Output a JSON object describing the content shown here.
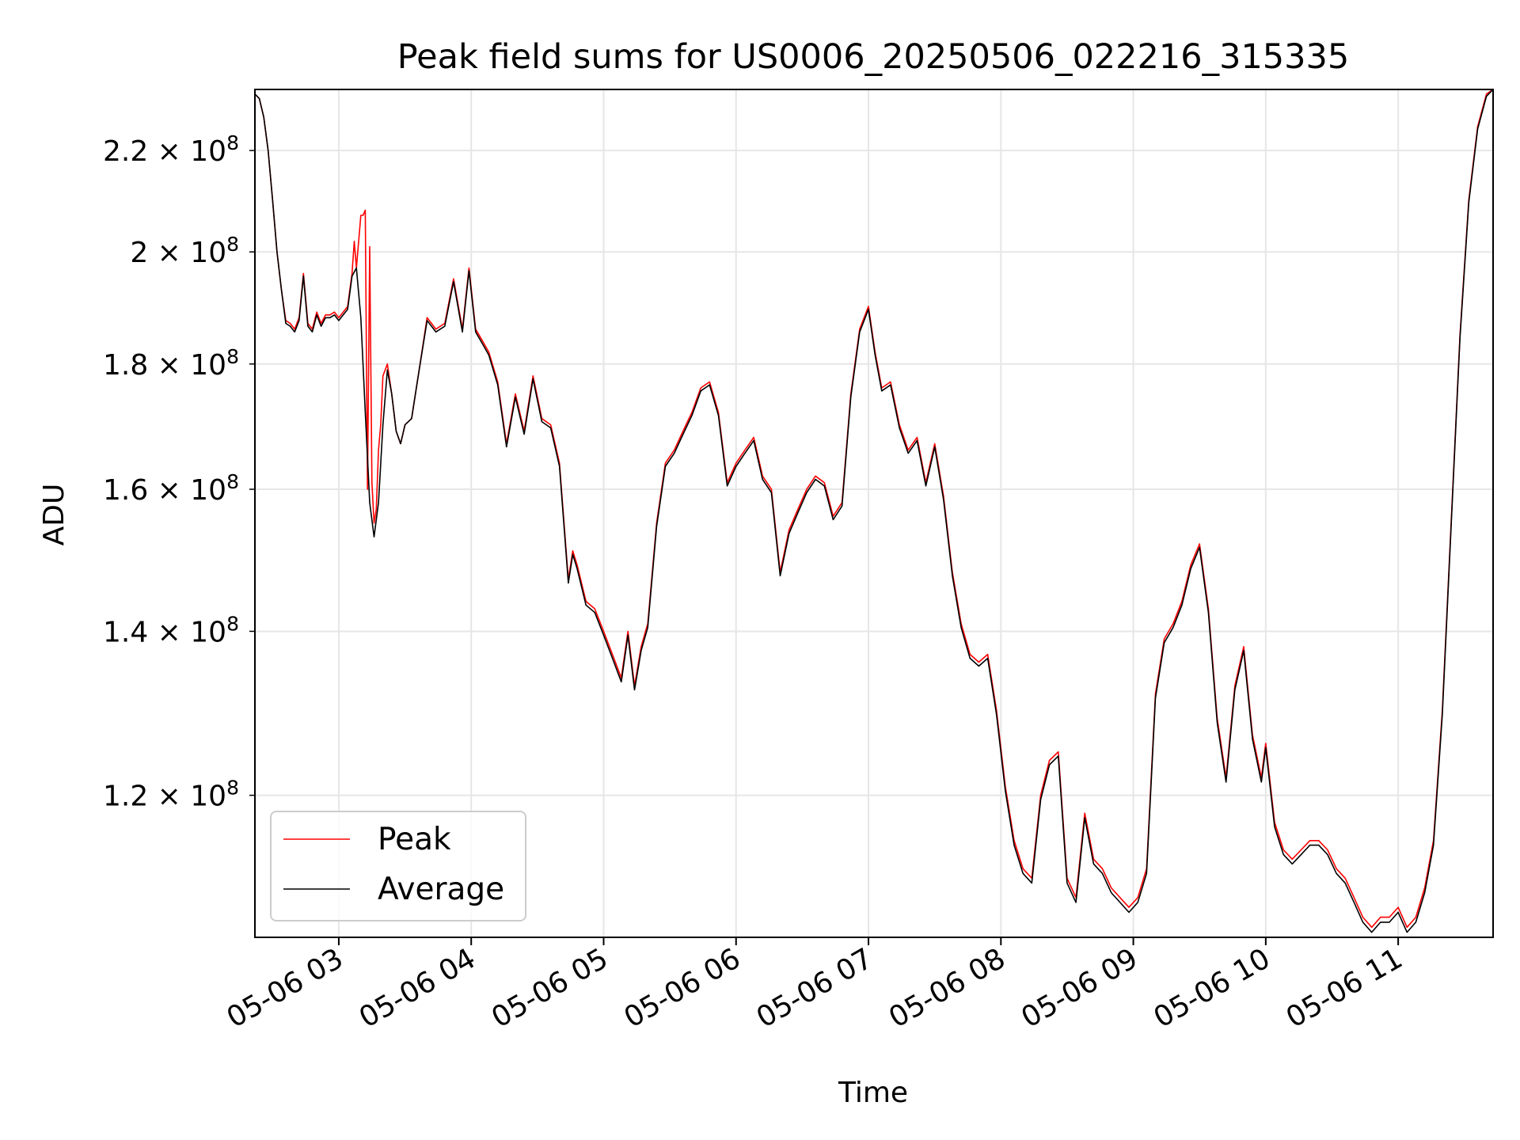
{
  "chart_data": {
    "type": "line",
    "title": "Peak field sums for US0006_20250506_022216_315335",
    "xlabel": "Time",
    "ylabel": "ADU",
    "yscale": "log",
    "grid": true,
    "legend_position": "lower-left",
    "xlim": [
      "05-06 02:22",
      "05-06 11:43"
    ],
    "ylim": [
      105000000.0,
      233000000.0
    ],
    "x_ticks": [
      {
        "label": "05-06 03",
        "value": "05-06 03:00"
      },
      {
        "label": "05-06 04",
        "value": "05-06 04:00"
      },
      {
        "label": "05-06 05",
        "value": "05-06 05:00"
      },
      {
        "label": "05-06 06",
        "value": "05-06 06:00"
      },
      {
        "label": "05-06 07",
        "value": "05-06 07:00"
      },
      {
        "label": "05-06 08",
        "value": "05-06 08:00"
      },
      {
        "label": "05-06 09",
        "value": "05-06 09:00"
      },
      {
        "label": "05-06 10",
        "value": "05-06 10:00"
      },
      {
        "label": "05-06 11",
        "value": "05-06 11:00"
      }
    ],
    "y_ticks": [
      {
        "mantissa": "1.2",
        "exponent": "8",
        "value": 120000000.0
      },
      {
        "mantissa": "1.4",
        "exponent": "8",
        "value": 140000000.0
      },
      {
        "mantissa": "1.6",
        "exponent": "8",
        "value": 160000000.0
      },
      {
        "mantissa": "1.8",
        "exponent": "8",
        "value": 180000000.0
      },
      {
        "mantissa": "2",
        "exponent": "8",
        "value": 200000000.0
      },
      {
        "mantissa": "2.2",
        "exponent": "8",
        "value": 220000000.0
      }
    ],
    "series": [
      {
        "name": "Peak",
        "color": "#ff0000",
        "x": [
          "05-06 02:22",
          "05-06 02:24",
          "05-06 02:26",
          "05-06 02:28",
          "05-06 02:30",
          "05-06 02:32",
          "05-06 02:34",
          "05-06 02:36",
          "05-06 02:38",
          "05-06 02:40",
          "05-06 02:42",
          "05-06 02:44",
          "05-06 02:46",
          "05-06 02:48",
          "05-06 02:50",
          "05-06 02:52",
          "05-06 02:54",
          "05-06 02:56",
          "05-06 02:58",
          "05-06 03:00",
          "05-06 03:02",
          "05-06 03:04",
          "05-06 03:06",
          "05-06 03:07",
          "05-06 03:08",
          "05-06 03:10",
          "05-06 03:11",
          "05-06 03:12",
          "05-06 03:13",
          "05-06 03:14",
          "05-06 03:15",
          "05-06 03:16",
          "05-06 03:17",
          "05-06 03:18",
          "05-06 03:19",
          "05-06 03:20",
          "05-06 03:22",
          "05-06 03:24",
          "05-06 03:26",
          "05-06 03:28",
          "05-06 03:30",
          "05-06 03:33",
          "05-06 03:36",
          "05-06 03:40",
          "05-06 03:44",
          "05-06 03:48",
          "05-06 03:52",
          "05-06 03:56",
          "05-06 03:59",
          "05-06 04:02",
          "05-06 04:05",
          "05-06 04:08",
          "05-06 04:12",
          "05-06 04:16",
          "05-06 04:20",
          "05-06 04:24",
          "05-06 04:28",
          "05-06 04:32",
          "05-06 04:36",
          "05-06 04:40",
          "05-06 04:44",
          "05-06 04:46",
          "05-06 04:48",
          "05-06 04:52",
          "05-06 04:56",
          "05-06 05:00",
          "05-06 05:04",
          "05-06 05:08",
          "05-06 05:11",
          "05-06 05:14",
          "05-06 05:17",
          "05-06 05:20",
          "05-06 05:24",
          "05-06 05:28",
          "05-06 05:32",
          "05-06 05:36",
          "05-06 05:40",
          "05-06 05:44",
          "05-06 05:48",
          "05-06 05:52",
          "05-06 05:56",
          "05-06 06:00",
          "05-06 06:04",
          "05-06 06:08",
          "05-06 06:12",
          "05-06 06:16",
          "05-06 06:20",
          "05-06 06:24",
          "05-06 06:28",
          "05-06 06:32",
          "05-06 06:36",
          "05-06 06:40",
          "05-06 06:44",
          "05-06 06:48",
          "05-06 06:52",
          "05-06 06:56",
          "05-06 07:00",
          "05-06 07:03",
          "05-06 07:06",
          "05-06 07:10",
          "05-06 07:14",
          "05-06 07:18",
          "05-06 07:22",
          "05-06 07:26",
          "05-06 07:30",
          "05-06 07:34",
          "05-06 07:38",
          "05-06 07:42",
          "05-06 07:46",
          "05-06 07:50",
          "05-06 07:54",
          "05-06 07:58",
          "05-06 08:02",
          "05-06 08:06",
          "05-06 08:10",
          "05-06 08:14",
          "05-06 08:18",
          "05-06 08:22",
          "05-06 08:26",
          "05-06 08:30",
          "05-06 08:34",
          "05-06 08:38",
          "05-06 08:42",
          "05-06 08:46",
          "05-06 08:50",
          "05-06 08:54",
          "05-06 08:58",
          "05-06 09:02",
          "05-06 09:06",
          "05-06 09:10",
          "05-06 09:14",
          "05-06 09:18",
          "05-06 09:22",
          "05-06 09:26",
          "05-06 09:30",
          "05-06 09:34",
          "05-06 09:38",
          "05-06 09:42",
          "05-06 09:46",
          "05-06 09:50",
          "05-06 09:54",
          "05-06 09:58",
          "05-06 10:00",
          "05-06 10:04",
          "05-06 10:08",
          "05-06 10:12",
          "05-06 10:16",
          "05-06 10:20",
          "05-06 10:24",
          "05-06 10:28",
          "05-06 10:32",
          "05-06 10:36",
          "05-06 10:40",
          "05-06 10:44",
          "05-06 10:48",
          "05-06 10:52",
          "05-06 10:56",
          "05-06 11:00",
          "05-06 11:04",
          "05-06 11:08",
          "05-06 11:12",
          "05-06 11:16",
          "05-06 11:20",
          "05-06 11:24",
          "05-06 11:28",
          "05-06 11:32",
          "05-06 11:36",
          "05-06 11:40",
          "05-06 11:43"
        ],
        "values": [
          232000000.0,
          231000000.0,
          227000000.0,
          220000000.0,
          210000000.0,
          200000000.0,
          193000000.0,
          187500000.0,
          187000000.0,
          186000000.0,
          188000000.0,
          196000000.0,
          187000000.0,
          186000000.0,
          189000000.0,
          187000000.0,
          188500000.0,
          188500000.0,
          189000000.0,
          188000000.0,
          189000000.0,
          190000000.0,
          196000000.0,
          202000000.0,
          197000000.0,
          207000000.0,
          207000000.0,
          208000000.0,
          160000000.0,
          201000000.0,
          161000000.0,
          155000000.0,
          157000000.0,
          166000000.0,
          170000000.0,
          178000000.0,
          180000000.0,
          175000000.0,
          169000000.0,
          167000000.0,
          170000000.0,
          171000000.0,
          178000000.0,
          188000000.0,
          186000000.0,
          187000000.0,
          195000000.0,
          186000000.0,
          197000000.0,
          186000000.0,
          184000000.0,
          182000000.0,
          177000000.0,
          167000000.0,
          175000000.0,
          169000000.0,
          178000000.0,
          171000000.0,
          170000000.0,
          164000000.0,
          147000000.0,
          151000000.0,
          149000000.0,
          144000000.0,
          143000000.0,
          140000000.0,
          137000000.0,
          134000000.0,
          140000000.0,
          133000000.0,
          138000000.0,
          141000000.0,
          155000000.0,
          164000000.0,
          166000000.0,
          169000000.0,
          172000000.0,
          176000000.0,
          177000000.0,
          172000000.0,
          161000000.0,
          164000000.0,
          166000000.0,
          168000000.0,
          162000000.0,
          160000000.0,
          148000000.0,
          154000000.0,
          157000000.0,
          160000000.0,
          162000000.0,
          161000000.0,
          156000000.0,
          158000000.0,
          175000000.0,
          186000000.0,
          190000000.0,
          182000000.0,
          176000000.0,
          177000000.0,
          170000000.0,
          166000000.0,
          168000000.0,
          161000000.0,
          167000000.0,
          159000000.0,
          148000000.0,
          141000000.0,
          137000000.0,
          136000000.0,
          137000000.0,
          130000000.0,
          121000000.0,
          115000000.0,
          112000000.0,
          111000000.0,
          120000000.0,
          124000000.0,
          125000000.0,
          111000000.0,
          109000000.0,
          118000000.0,
          113000000.0,
          112000000.0,
          110000000.0,
          109000000.0,
          108000000.0,
          109000000.0,
          112000000.0,
          132000000.0,
          139000000.0,
          141000000.0,
          144000000.0,
          149000000.0,
          152000000.0,
          143000000.0,
          129000000.0,
          122000000.0,
          133000000.0,
          138000000.0,
          127000000.0,
          122000000.0,
          126000000.0,
          117000000.0,
          114000000.0,
          113000000.0,
          114000000.0,
          115000000.0,
          115000000.0,
          114000000.0,
          112000000.0,
          111000000.0,
          109000000.0,
          107000000.0,
          106000000.0,
          107000000.0,
          107000000.0,
          108000000.0,
          106000000.0,
          107000000.0,
          110000000.0,
          115000000.0,
          130000000.0,
          155000000.0,
          185000000.0,
          210000000.0,
          225000000.0,
          232000000.0,
          233000000.0
        ]
      },
      {
        "name": "Average",
        "color": "#000000",
        "x": [
          "05-06 02:22",
          "05-06 02:24",
          "05-06 02:26",
          "05-06 02:28",
          "05-06 02:30",
          "05-06 02:32",
          "05-06 02:34",
          "05-06 02:36",
          "05-06 02:38",
          "05-06 02:40",
          "05-06 02:42",
          "05-06 02:44",
          "05-06 02:46",
          "05-06 02:48",
          "05-06 02:50",
          "05-06 02:52",
          "05-06 02:54",
          "05-06 02:56",
          "05-06 02:58",
          "05-06 03:00",
          "05-06 03:02",
          "05-06 03:04",
          "05-06 03:06",
          "05-06 03:08",
          "05-06 03:10",
          "05-06 03:12",
          "05-06 03:14",
          "05-06 03:16",
          "05-06 03:18",
          "05-06 03:20",
          "05-06 03:22",
          "05-06 03:24",
          "05-06 03:26",
          "05-06 03:28",
          "05-06 03:30",
          "05-06 03:33",
          "05-06 03:36",
          "05-06 03:40",
          "05-06 03:44",
          "05-06 03:48",
          "05-06 03:52",
          "05-06 03:56",
          "05-06 03:59",
          "05-06 04:02",
          "05-06 04:05",
          "05-06 04:08",
          "05-06 04:12",
          "05-06 04:16",
          "05-06 04:20",
          "05-06 04:24",
          "05-06 04:28",
          "05-06 04:32",
          "05-06 04:36",
          "05-06 04:40",
          "05-06 04:44",
          "05-06 04:46",
          "05-06 04:48",
          "05-06 04:52",
          "05-06 04:56",
          "05-06 05:00",
          "05-06 05:04",
          "05-06 05:08",
          "05-06 05:11",
          "05-06 05:14",
          "05-06 05:17",
          "05-06 05:20",
          "05-06 05:24",
          "05-06 05:28",
          "05-06 05:32",
          "05-06 05:36",
          "05-06 05:40",
          "05-06 05:44",
          "05-06 05:48",
          "05-06 05:52",
          "05-06 05:56",
          "05-06 06:00",
          "05-06 06:04",
          "05-06 06:08",
          "05-06 06:12",
          "05-06 06:16",
          "05-06 06:20",
          "05-06 06:24",
          "05-06 06:28",
          "05-06 06:32",
          "05-06 06:36",
          "05-06 06:40",
          "05-06 06:44",
          "05-06 06:48",
          "05-06 06:52",
          "05-06 06:56",
          "05-06 07:00",
          "05-06 07:03",
          "05-06 07:06",
          "05-06 07:10",
          "05-06 07:14",
          "05-06 07:18",
          "05-06 07:22",
          "05-06 07:26",
          "05-06 07:30",
          "05-06 07:34",
          "05-06 07:38",
          "05-06 07:42",
          "05-06 07:46",
          "05-06 07:50",
          "05-06 07:54",
          "05-06 07:58",
          "05-06 08:02",
          "05-06 08:06",
          "05-06 08:10",
          "05-06 08:14",
          "05-06 08:18",
          "05-06 08:22",
          "05-06 08:26",
          "05-06 08:30",
          "05-06 08:34",
          "05-06 08:38",
          "05-06 08:42",
          "05-06 08:46",
          "05-06 08:50",
          "05-06 08:54",
          "05-06 08:58",
          "05-06 09:02",
          "05-06 09:06",
          "05-06 09:10",
          "05-06 09:14",
          "05-06 09:18",
          "05-06 09:22",
          "05-06 09:26",
          "05-06 09:30",
          "05-06 09:34",
          "05-06 09:38",
          "05-06 09:42",
          "05-06 09:46",
          "05-06 09:50",
          "05-06 09:54",
          "05-06 09:58",
          "05-06 10:00",
          "05-06 10:04",
          "05-06 10:08",
          "05-06 10:12",
          "05-06 10:16",
          "05-06 10:20",
          "05-06 10:24",
          "05-06 10:28",
          "05-06 10:32",
          "05-06 10:36",
          "05-06 10:40",
          "05-06 10:44",
          "05-06 10:48",
          "05-06 10:52",
          "05-06 10:56",
          "05-06 11:00",
          "05-06 11:04",
          "05-06 11:08",
          "05-06 11:12",
          "05-06 11:16",
          "05-06 11:20",
          "05-06 11:24",
          "05-06 11:28",
          "05-06 11:32",
          "05-06 11:36",
          "05-06 11:40",
          "05-06 11:43"
        ],
        "values": [
          232000000.0,
          231000000.0,
          227000000.0,
          220000000.0,
          210000000.0,
          200000000.0,
          193000000.0,
          187000000.0,
          186500000.0,
          185500000.0,
          187500000.0,
          195500000.0,
          186500000.0,
          185500000.0,
          188500000.0,
          186500000.0,
          188000000.0,
          188000000.0,
          188500000.0,
          187500000.0,
          188500000.0,
          189500000.0,
          195500000.0,
          197000000.0,
          188000000.0,
          172000000.0,
          158000000.0,
          153000000.0,
          158000000.0,
          170000000.0,
          179000000.0,
          175000000.0,
          169000000.0,
          167000000.0,
          170000000.0,
          171000000.0,
          178000000.0,
          187500000.0,
          185500000.0,
          186500000.0,
          194500000.0,
          185500000.0,
          196500000.0,
          185500000.0,
          183500000.0,
          181500000.0,
          176500000.0,
          166500000.0,
          174500000.0,
          168500000.0,
          177500000.0,
          170500000.0,
          169500000.0,
          163500000.0,
          146500000.0,
          150500000.0,
          148500000.0,
          143500000.0,
          142500000.0,
          139500000.0,
          136500000.0,
          133500000.0,
          139500000.0,
          132500000.0,
          137500000.0,
          140500000.0,
          154500000.0,
          163500000.0,
          165500000.0,
          168500000.0,
          171500000.0,
          175500000.0,
          176500000.0,
          171500000.0,
          160500000.0,
          163500000.0,
          165500000.0,
          167500000.0,
          161500000.0,
          159500000.0,
          147500000.0,
          153500000.0,
          156500000.0,
          159500000.0,
          161500000.0,
          160500000.0,
          155500000.0,
          157500000.0,
          174500000.0,
          185500000.0,
          189500000.0,
          181500000.0,
          175500000.0,
          176500000.0,
          169500000.0,
          165500000.0,
          167500000.0,
          160500000.0,
          166500000.0,
          158500000.0,
          147500000.0,
          140500000.0,
          136500000.0,
          135500000.0,
          136500000.0,
          129500000.0,
          120500000.0,
          114500000.0,
          111500000.0,
          110500000.0,
          119500000.0,
          123500000.0,
          124500000.0,
          110500000.0,
          108500000.0,
          117500000.0,
          112500000.0,
          111500000.0,
          109500000.0,
          108500000.0,
          107500000.0,
          108500000.0,
          111500000.0,
          131500000.0,
          138500000.0,
          140500000.0,
          143500000.0,
          148500000.0,
          151500000.0,
          142500000.0,
          128500000.0,
          121500000.0,
          132500000.0,
          137500000.0,
          126500000.0,
          121500000.0,
          125500000.0,
          116500000.0,
          113500000.0,
          112500000.0,
          113500000.0,
          114500000.0,
          114500000.0,
          113500000.0,
          111500000.0,
          110500000.0,
          108500000.0,
          106500000.0,
          105500000.0,
          106500000.0,
          106500000.0,
          107500000.0,
          105500000.0,
          106500000.0,
          109500000.0,
          114500000.0,
          129500000.0,
          154500000.0,
          184500000.0,
          209500000.0,
          224500000.0,
          231500000.0,
          233000000.0
        ]
      }
    ]
  }
}
